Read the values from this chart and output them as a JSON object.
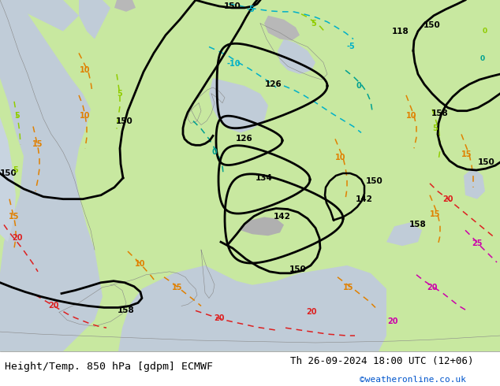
{
  "title_left": "Height/Temp. 850 hPa [gdpm] ECMWF",
  "title_right": "Th 26-09-2024 18:00 UTC (12+06)",
  "credit": "©weatheronline.co.uk",
  "bg_land": "#c8e8a0",
  "bg_sea": "#c8d8e8",
  "bg_gray": "#b8b8b8",
  "white": "#ffffff",
  "title_fontsize": 9.5,
  "credit_fontsize": 8,
  "credit_color": "#0055cc",
  "black_lw": 2.0,
  "col_cyan": "#00b0c8",
  "col_teal": "#00a090",
  "col_lime": "#90cc00",
  "col_orange": "#e08000",
  "col_red": "#dd2020",
  "col_magenta": "#cc00aa"
}
